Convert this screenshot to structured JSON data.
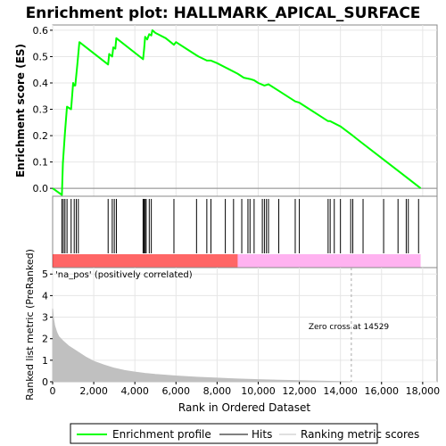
{
  "chart_data": {
    "type": "line",
    "title": "Enrichment plot: HALLMARK_APICAL_SURFACE",
    "colors": {
      "enrichment_line": "#00ff00",
      "hits": "#000000",
      "ranking_area": "#c0c0c0",
      "positive_band": "#ff0000",
      "negative_band": "#ff00cc",
      "zero_cross_line": "#aaaaaa",
      "pos_label": "#ff0000"
    },
    "top_panel": {
      "ylabel": "Enrichment score (ES)",
      "ylim": [
        -0.03,
        0.62
      ],
      "yticks": [
        "0.0",
        "0.1",
        "0.2",
        "0.3",
        "0.4",
        "0.5",
        "0.6"
      ],
      "ytick_values": [
        0.0,
        0.1,
        0.2,
        0.3,
        0.4,
        0.5,
        0.6
      ],
      "series": [
        {
          "name": "Enrichment profile",
          "x": [
            0,
            450,
            500,
            600,
            700,
            900,
            1000,
            1050,
            1100,
            1200,
            1300,
            2700,
            2750,
            2900,
            2950,
            3050,
            3100,
            4400,
            4450,
            4500,
            4600,
            4700,
            4800,
            4850,
            5000,
            5500,
            5900,
            6000,
            6500,
            7000,
            7100,
            7500,
            7700,
            8000,
            8500,
            9000,
            9300,
            9600,
            9800,
            10000,
            10300,
            10500,
            11000,
            11800,
            12000,
            13400,
            13500,
            14000,
            14600,
            15000,
            16000,
            17000,
            17900
          ],
          "y": [
            0.0,
            -0.025,
            0.095,
            0.21,
            0.31,
            0.3,
            0.4,
            0.39,
            0.39,
            0.47,
            0.555,
            0.47,
            0.51,
            0.5,
            0.535,
            0.53,
            0.57,
            0.49,
            0.53,
            0.575,
            0.565,
            0.585,
            0.58,
            0.6,
            0.59,
            0.57,
            0.545,
            0.555,
            0.53,
            0.505,
            0.5,
            0.485,
            0.485,
            0.475,
            0.455,
            0.435,
            0.42,
            0.415,
            0.41,
            0.4,
            0.39,
            0.395,
            0.37,
            0.33,
            0.325,
            0.255,
            0.255,
            0.235,
            0.2,
            0.175,
            0.115,
            0.055,
            0.0
          ]
        }
      ]
    },
    "hits": [
      450,
      520,
      600,
      700,
      900,
      1050,
      1150,
      1250,
      2700,
      2900,
      3000,
      3100,
      4400,
      4450,
      4500,
      4550,
      4700,
      4800,
      5900,
      7000,
      7500,
      7700,
      8400,
      8800,
      9200,
      9500,
      9600,
      9800,
      10200,
      10300,
      10400,
      10500,
      11000,
      11800,
      12000,
      13400,
      13500,
      13700,
      14000,
      14500,
      14600,
      15100,
      16100,
      16800,
      17200,
      17300,
      17800
    ],
    "middle_band": {
      "positive_label": "'na_pos' (positively correlated)",
      "positive_end": 9000,
      "negative_end": 17900
    },
    "bottom_panel": {
      "ylabel": "Ranked list metric (PreRanked)",
      "xlabel": "Rank in Ordered Dataset",
      "ylim": [
        0,
        5.3
      ],
      "yticks": [
        "0",
        "1",
        "2",
        "3",
        "4",
        "5"
      ],
      "ytick_values": [
        0,
        1,
        2,
        3,
        4,
        5
      ],
      "ranking_metric": {
        "name": "Ranking metric scores",
        "x": [
          0,
          30,
          100,
          200,
          300,
          500,
          800,
          1200,
          1600,
          2000,
          2500,
          3000,
          3500,
          4000,
          4500,
          5000,
          6000,
          7000,
          8000,
          9000,
          10000,
          11000,
          12000,
          13000,
          14000,
          14500
        ],
        "y": [
          3.4,
          3.0,
          2.6,
          2.3,
          2.1,
          1.9,
          1.65,
          1.4,
          1.15,
          0.95,
          0.78,
          0.63,
          0.52,
          0.45,
          0.39,
          0.34,
          0.27,
          0.21,
          0.17,
          0.13,
          0.1,
          0.07,
          0.05,
          0.03,
          0.01,
          0.0
        ]
      },
      "zero_cross_label": "Zero cross at 14529",
      "zero_cross": 14529
    },
    "x_axis": {
      "xlim": [
        0,
        18700
      ],
      "xticks": [
        "0",
        "2,000",
        "4,000",
        "6,000",
        "8,000",
        "10,000",
        "12,000",
        "14,000",
        "16,000",
        "18,000"
      ],
      "xtick_values": [
        0,
        2000,
        4000,
        6000,
        8000,
        10000,
        12000,
        14000,
        16000,
        18000
      ]
    },
    "legend": {
      "placement": "bottom",
      "items": [
        {
          "label": "Enrichment profile",
          "swatch": "line-green"
        },
        {
          "label": "Hits",
          "swatch": "line-black"
        },
        {
          "label": "Ranking metric scores",
          "swatch": "line-gray"
        }
      ]
    }
  }
}
